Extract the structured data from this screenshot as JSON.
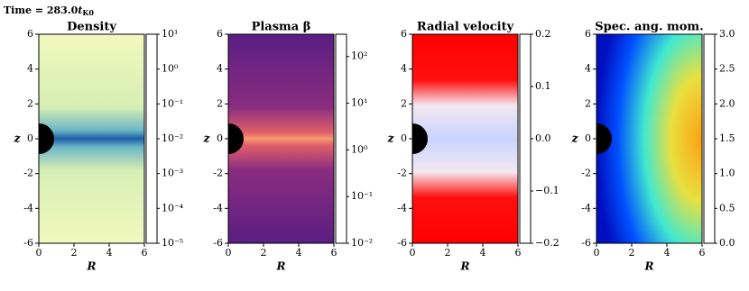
{
  "time_label": {
    "text": "Time = 283.0",
    "var": "t",
    "sub": "K0"
  },
  "chart_data": [
    {
      "type": "heatmap",
      "title": "Density",
      "xlabel": "R",
      "ylabel": "z",
      "xlim": [
        0,
        6
      ],
      "ylim": [
        -6,
        6
      ],
      "xticks": [
        0,
        2,
        4,
        6
      ],
      "yticks": [
        -6,
        -4,
        -2,
        0,
        2,
        4,
        6
      ],
      "colorbar": {
        "clim": [
          1e-05,
          10
        ],
        "log": true,
        "ticks": [
          {
            "value": 10,
            "label": "10¹"
          },
          {
            "value": 1,
            "label": "10⁰"
          },
          {
            "value": 0.1,
            "label": "10⁻¹"
          },
          {
            "value": 0.01,
            "label": "10⁻²"
          },
          {
            "value": 0.001,
            "label": "10⁻³"
          },
          {
            "value": 0.0001,
            "label": "10⁻⁴"
          },
          {
            "value": 1e-05,
            "label": "10⁻⁵"
          }
        ],
        "colormap": [
          "#ffffd9",
          "#edf8b1",
          "#c7e9b4",
          "#7fcdbb",
          "#41b6c4",
          "#1d91c0",
          "#225ea8",
          "#253494",
          "#081d58"
        ]
      }
    },
    {
      "type": "heatmap",
      "title": "Plasma β",
      "xlabel": "R",
      "ylabel": "z",
      "xlim": [
        0,
        6
      ],
      "ylim": [
        -6,
        6
      ],
      "xticks": [
        0,
        2,
        4,
        6
      ],
      "yticks": [
        -6,
        -4,
        -2,
        0,
        2,
        4,
        6
      ],
      "colorbar": {
        "clim": [
          0.01,
          300
        ],
        "log": true,
        "ticks": [
          {
            "value": 100,
            "label": "10²"
          },
          {
            "value": 10,
            "label": "10¹"
          },
          {
            "value": 1,
            "label": "10⁰"
          },
          {
            "value": 0.1,
            "label": "10⁻¹"
          },
          {
            "value": 0.01,
            "label": "10⁻²"
          }
        ],
        "colormap": [
          "#000004",
          "#2c115f",
          "#721f81",
          "#b73779",
          "#f1605d",
          "#feb078",
          "#fcfdbf"
        ]
      }
    },
    {
      "type": "heatmap",
      "title": "Radial velocity",
      "xlabel": "R",
      "ylabel": "z",
      "xlim": [
        0,
        6
      ],
      "ylim": [
        -6,
        6
      ],
      "xticks": [
        0,
        2,
        4,
        6
      ],
      "yticks": [
        -6,
        -4,
        -2,
        0,
        2,
        4,
        6
      ],
      "colorbar": {
        "clim": [
          -0.2,
          0.2
        ],
        "log": false,
        "ticks": [
          {
            "value": 0.2,
            "label": "0.2"
          },
          {
            "value": 0.1,
            "label": "0.1"
          },
          {
            "value": 0,
            "label": "0.0"
          },
          {
            "value": -0.1,
            "label": "−0.1"
          },
          {
            "value": -0.2,
            "label": "−0.2"
          }
        ],
        "colormap": [
          "#0000ff",
          "#ffffff",
          "#ff0000"
        ]
      }
    },
    {
      "type": "heatmap",
      "title": "Spec. ang. mom.",
      "xlabel": "R",
      "ylabel": "z",
      "xlim": [
        0,
        6
      ],
      "ylim": [
        -6,
        6
      ],
      "xticks": [
        0,
        2,
        4,
        6
      ],
      "yticks": [
        -6,
        -4,
        -2,
        0,
        2,
        4,
        6
      ],
      "colorbar": {
        "clim": [
          0,
          3
        ],
        "log": false,
        "ticks": [
          {
            "value": 3,
            "label": "3.0"
          },
          {
            "value": 2.5,
            "label": "2.5"
          },
          {
            "value": 2,
            "label": "2.0"
          },
          {
            "value": 1.5,
            "label": "1.5"
          },
          {
            "value": 1,
            "label": "1.0"
          },
          {
            "value": 0.5,
            "label": "0.5"
          },
          {
            "value": 0,
            "label": "0.0"
          }
        ],
        "colormap": [
          "#00007f",
          "#0000ff",
          "#007fff",
          "#00ffff",
          "#7fff7f",
          "#ffff00",
          "#ff7f00",
          "#ff0000",
          "#7f0000"
        ]
      }
    }
  ]
}
